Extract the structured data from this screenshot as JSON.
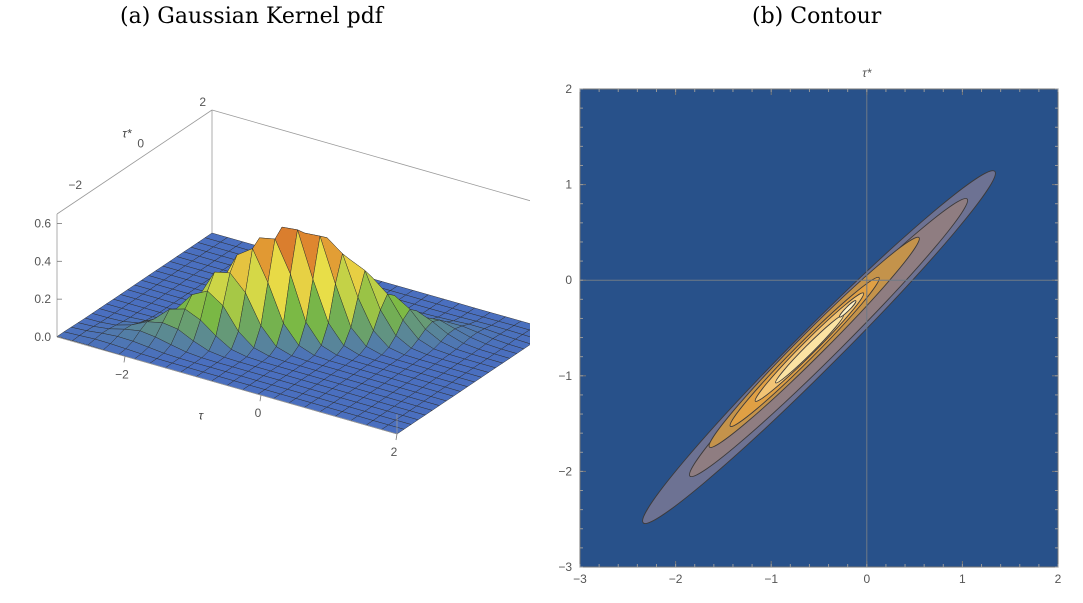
{
  "panels": [
    {
      "title": "(a) Gaussian Kernel pdf"
    },
    {
      "title": "(b) Contour"
    }
  ],
  "chart_data": [
    {
      "type": "surface",
      "title": "(a) Gaussian Kernel pdf",
      "xlabel": "τ",
      "ylabel": "τ*",
      "x_ticks": [
        "−2",
        "0",
        "2"
      ],
      "y_ticks": [
        "−2",
        "0",
        "2"
      ],
      "z_ticks": [
        "0.0",
        "0.2",
        "0.4",
        "0.6"
      ],
      "xlim": [
        -3,
        2
      ],
      "ylim": [
        -3,
        2
      ],
      "zlim": [
        0,
        0.65
      ],
      "kernel": {
        "mean": [
          -0.6,
          -0.7
        ],
        "sd_major": 1.0,
        "sd_minor": 0.12,
        "angle_deg": 45,
        "peak": 0.6
      },
      "colormap": [
        "#4a6fbf",
        "#79b845",
        "#e8df48",
        "#e08a2f",
        "#b0282a"
      ]
    },
    {
      "type": "contour",
      "title": "(b) Contour",
      "xlabel": "",
      "ylabel": "τ*",
      "x_ticks": [
        "−3",
        "−2",
        "−1",
        "0",
        "1",
        "2"
      ],
      "y_ticks": [
        "−3",
        "−2",
        "−1",
        "0",
        "1",
        "2"
      ],
      "xlim": [
        -3,
        2
      ],
      "ylim": [
        -3,
        2
      ],
      "levels": [
        {
          "level": 1,
          "center": [
            -0.5,
            -0.7
          ],
          "semi_major": 2.6,
          "semi_minor": 0.22,
          "angle_deg": 45,
          "color": "#6d7293"
        },
        {
          "level": 2,
          "center": [
            -0.4,
            -0.6
          ],
          "semi_major": 2.05,
          "semi_minor": 0.17,
          "angle_deg": 45,
          "color": "#8f7d81"
        },
        {
          "level": 3,
          "center": [
            -0.55,
            -0.65
          ],
          "semi_major": 1.55,
          "semi_minor": 0.13,
          "angle_deg": 45,
          "color": "#c4934b"
        },
        {
          "level": 4,
          "center": [
            -0.65,
            -0.75
          ],
          "semi_major": 1.1,
          "semi_minor": 0.095,
          "angle_deg": 45,
          "color": "#e0a044"
        },
        {
          "level": 5,
          "center": [
            -0.6,
            -0.7
          ],
          "semi_major": 0.8,
          "semi_minor": 0.07,
          "angle_deg": 45,
          "color": "#f2c475"
        },
        {
          "level": 6,
          "center": [
            -0.6,
            -0.72
          ],
          "semi_major": 0.5,
          "semi_minor": 0.045,
          "angle_deg": 45,
          "color": "#fbe3a3"
        },
        {
          "level": 7,
          "center": [
            -0.2,
            -0.3
          ],
          "semi_major": 0.12,
          "semi_minor": 0.02,
          "angle_deg": 45,
          "color": "#fdf0c6"
        }
      ],
      "background": "#28518a"
    }
  ]
}
